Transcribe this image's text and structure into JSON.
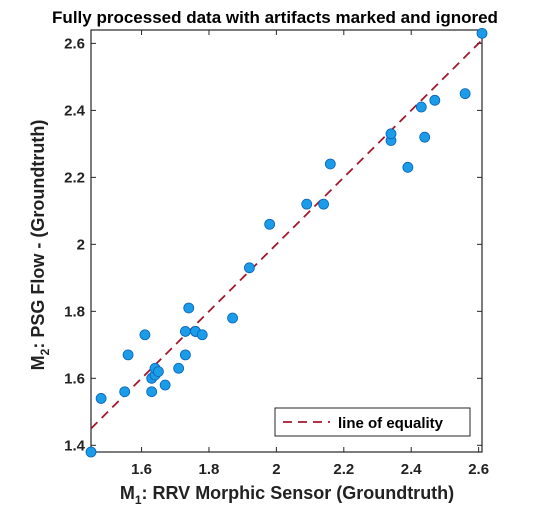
{
  "chart_data": {
    "type": "scatter",
    "title": "Fully processed data with artifacts marked and ignored",
    "xlabel": {
      "prefix": "M",
      "sub": "1",
      "rest": ": RRV Morphic Sensor (Groundtruth)"
    },
    "ylabel": {
      "prefix": "M",
      "sub": "2",
      "rest": ": PSG Flow - (Groundtruth)"
    },
    "xlim": [
      1.45,
      2.61
    ],
    "ylim": [
      1.38,
      2.64
    ],
    "xticks": [
      "1.6",
      "1.8",
      "2",
      "2.2",
      "2.4",
      "2.6"
    ],
    "yticks": [
      "1.4",
      "1.6",
      "1.8",
      "2",
      "2.2",
      "2.4",
      "2.6"
    ],
    "grid": false,
    "legend": {
      "position": "bottom-right",
      "entries": [
        "line of equality"
      ]
    },
    "colors": {
      "marker": "#1b9ce8",
      "marker_edge": "#0a62b8",
      "equality_line": "#a0192d",
      "axes": "#262626"
    },
    "series": [
      {
        "x": [
          1.45,
          1.48,
          1.55,
          1.56,
          1.61,
          1.63,
          1.63,
          1.64,
          1.64,
          1.65,
          1.67,
          1.71,
          1.73,
          1.73,
          1.74,
          1.76,
          1.76,
          1.78,
          1.87,
          1.92,
          1.98,
          2.09,
          2.14,
          2.16,
          2.34,
          2.34,
          2.39,
          2.43,
          2.44,
          2.47,
          2.56,
          2.61
        ],
        "y": [
          1.38,
          1.54,
          1.56,
          1.67,
          1.73,
          1.56,
          1.6,
          1.61,
          1.63,
          1.62,
          1.58,
          1.63,
          1.67,
          1.74,
          1.81,
          1.74,
          1.74,
          1.73,
          1.78,
          1.93,
          2.06,
          2.12,
          2.12,
          2.24,
          2.31,
          2.33,
          2.23,
          2.41,
          2.32,
          2.43,
          2.45,
          2.63
        ]
      }
    ],
    "equality_line": {
      "x": [
        1.45,
        2.61
      ],
      "y": [
        1.45,
        2.61
      ]
    }
  }
}
